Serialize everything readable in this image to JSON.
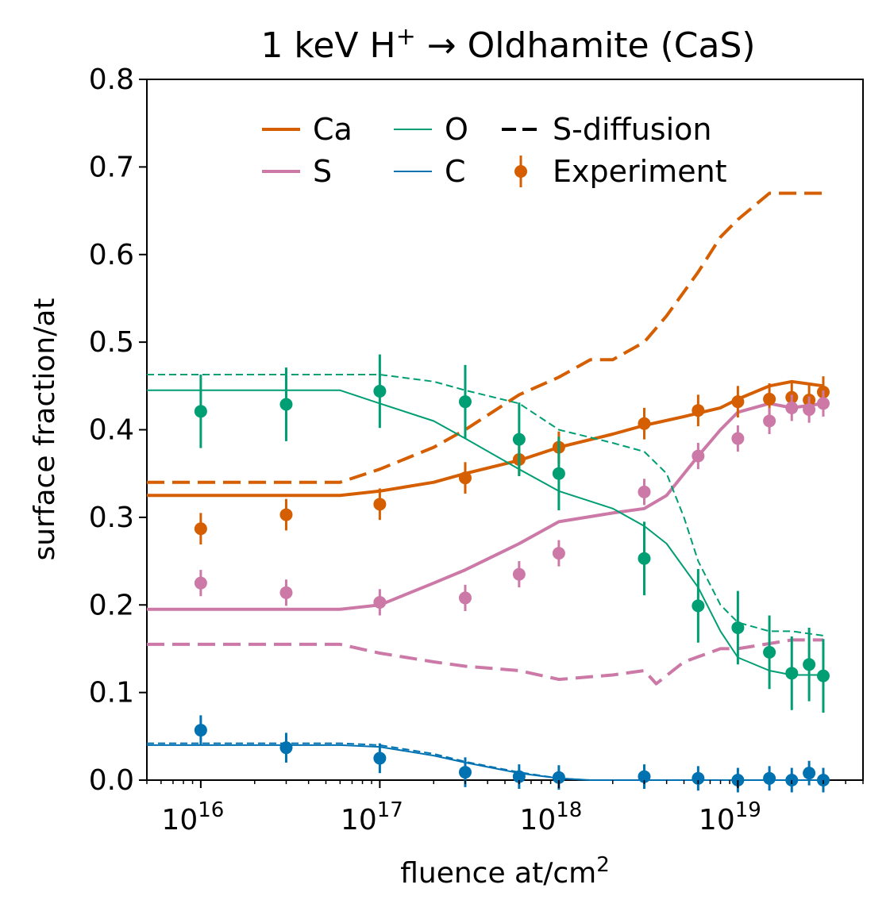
{
  "chart_data": {
    "type": "line",
    "title_main": "1 keV H",
    "title_sup": "+",
    "title_rest": "→ Oldhamite (CaS)",
    "xlabel_main": "fluence at/cm",
    "xlabel_sup": "2",
    "ylabel": "surface fraction/at",
    "xscale": "log",
    "xlim": [
      5000000000000000.0,
      5e+19
    ],
    "ylim": [
      0.0,
      0.8
    ],
    "x_tick_values": [
      1e+16,
      1e+17,
      1e+18,
      1e+19
    ],
    "x_tick_base": [
      "10",
      "10",
      "10",
      "10"
    ],
    "x_tick_exp": [
      "16",
      "17",
      "18",
      "19"
    ],
    "y_ticks": [
      "0.0",
      "0.1",
      "0.2",
      "0.3",
      "0.4",
      "0.5",
      "0.6",
      "0.7",
      "0.8"
    ],
    "colors": {
      "Ca": "#d55e00",
      "S": "#cc79a7",
      "O": "#009e73",
      "C": "#0072b2"
    },
    "legend": [
      {
        "label": "Ca",
        "kind": "thick",
        "color": "Ca"
      },
      {
        "label": "S",
        "kind": "thick",
        "color": "S"
      },
      {
        "label": "O",
        "kind": "thin",
        "color": "O"
      },
      {
        "label": "C",
        "kind": "thin",
        "color": "C"
      },
      {
        "label": "S-diffusion",
        "kind": "dash",
        "color": "#000000"
      },
      {
        "label": "Experiment",
        "kind": "marker",
        "color": "Ca"
      }
    ],
    "series": [
      {
        "element": "Ca",
        "model": "standard",
        "style": "thick",
        "x": [
          5000000000000000.0,
          6e+16,
          1e+17,
          2e+17,
          3e+17,
          6e+17,
          1e+18,
          2e+18,
          3e+18,
          5e+18,
          8e+18,
          1e+19,
          1.5e+19,
          2e+19,
          3e+19
        ],
        "y": [
          0.325,
          0.325,
          0.33,
          0.34,
          0.35,
          0.365,
          0.38,
          0.395,
          0.405,
          0.415,
          0.425,
          0.435,
          0.45,
          0.455,
          0.45
        ]
      },
      {
        "element": "Ca",
        "model": "S-diffusion",
        "style": "dash-thick",
        "x": [
          5000000000000000.0,
          6e+16,
          1e+17,
          2e+17,
          3e+17,
          6e+17,
          1e+18,
          1.5e+18,
          2e+18,
          3e+18,
          4e+18,
          6e+18,
          8e+18,
          1e+19,
          1.5e+19,
          2e+19,
          3e+19
        ],
        "y": [
          0.34,
          0.34,
          0.355,
          0.38,
          0.4,
          0.44,
          0.46,
          0.48,
          0.48,
          0.5,
          0.53,
          0.58,
          0.62,
          0.64,
          0.67,
          0.67,
          0.67
        ]
      },
      {
        "element": "S",
        "model": "standard",
        "style": "thick",
        "x": [
          5000000000000000.0,
          6e+16,
          1e+17,
          2e+17,
          3e+17,
          6e+17,
          1e+18,
          2e+18,
          3e+18,
          4e+18,
          6e+18,
          8e+18,
          1e+19,
          1.5e+19,
          2e+19,
          3e+19
        ],
        "y": [
          0.195,
          0.195,
          0.2,
          0.225,
          0.24,
          0.27,
          0.295,
          0.305,
          0.31,
          0.325,
          0.37,
          0.4,
          0.42,
          0.43,
          0.425,
          0.43
        ]
      },
      {
        "element": "S",
        "model": "S-diffusion",
        "style": "dash-thick",
        "x": [
          5000000000000000.0,
          6e+16,
          1e+17,
          2e+17,
          3e+17,
          6e+17,
          1e+18,
          2e+18,
          3e+18,
          3.5e+18,
          5e+18,
          8e+18,
          1e+19,
          2e+19,
          3e+19
        ],
        "y": [
          0.155,
          0.155,
          0.145,
          0.135,
          0.13,
          0.125,
          0.115,
          0.12,
          0.125,
          0.11,
          0.135,
          0.15,
          0.15,
          0.16,
          0.16
        ]
      },
      {
        "element": "O",
        "model": "standard",
        "style": "thin",
        "x": [
          5000000000000000.0,
          6e+16,
          1e+17,
          2e+17,
          3e+17,
          6e+17,
          1e+18,
          2e+18,
          3e+18,
          4e+18,
          6e+18,
          8e+18,
          1e+19,
          1.5e+19,
          2e+19,
          3e+19
        ],
        "y": [
          0.445,
          0.445,
          0.43,
          0.41,
          0.39,
          0.355,
          0.33,
          0.31,
          0.29,
          0.27,
          0.22,
          0.17,
          0.14,
          0.125,
          0.12,
          0.12
        ]
      },
      {
        "element": "O",
        "model": "S-diffusion",
        "style": "dash-thin",
        "x": [
          5000000000000000.0,
          1e+17,
          2e+17,
          3e+17,
          6e+17,
          1e+18,
          2e+18,
          3e+18,
          4e+18,
          5e+18,
          6e+18,
          8e+18,
          1e+19,
          1.5e+19,
          2e+19,
          3e+19
        ],
        "y": [
          0.463,
          0.463,
          0.455,
          0.445,
          0.43,
          0.4,
          0.385,
          0.375,
          0.35,
          0.3,
          0.25,
          0.2,
          0.18,
          0.17,
          0.17,
          0.165
        ]
      },
      {
        "element": "C",
        "model": "standard",
        "style": "thin",
        "x": [
          5000000000000000.0,
          6e+16,
          1e+17,
          2e+17,
          3e+17,
          6e+17,
          1e+18,
          1.5e+18,
          3e+19
        ],
        "y": [
          0.04,
          0.04,
          0.038,
          0.028,
          0.02,
          0.008,
          0.002,
          0.0,
          0.0
        ]
      },
      {
        "element": "C",
        "model": "S-diffusion",
        "style": "dash-thin",
        "x": [
          5000000000000000.0,
          6e+16,
          1e+17,
          2e+17,
          3e+17,
          6e+17,
          1e+18,
          1.5e+18,
          3e+19
        ],
        "y": [
          0.042,
          0.042,
          0.04,
          0.03,
          0.021,
          0.009,
          0.002,
          0.0,
          0.0
        ]
      }
    ],
    "experiment": [
      {
        "element": "Ca",
        "x": [
          1e+16,
          3e+16,
          1e+17,
          3e+17,
          6e+17,
          1e+18,
          3e+18,
          6e+18,
          1e+19,
          1.5e+19,
          2e+19,
          2.5e+19,
          3e+19
        ],
        "y": [
          0.287,
          0.303,
          0.315,
          0.345,
          0.366,
          0.38,
          0.407,
          0.422,
          0.432,
          0.435,
          0.437,
          0.434,
          0.443
        ],
        "err": [
          0.018,
          0.018,
          0.018,
          0.018,
          0.018,
          0.018,
          0.018,
          0.018,
          0.018,
          0.018,
          0.018,
          0.018,
          0.018
        ]
      },
      {
        "element": "S",
        "x": [
          1e+16,
          3e+16,
          1e+17,
          3e+17,
          6e+17,
          1e+18,
          3e+18,
          6e+18,
          1e+19,
          1.5e+19,
          2e+19,
          2.5e+19,
          3e+19
        ],
        "y": [
          0.225,
          0.214,
          0.203,
          0.208,
          0.235,
          0.259,
          0.329,
          0.37,
          0.39,
          0.41,
          0.425,
          0.423,
          0.43
        ],
        "err": [
          0.015,
          0.015,
          0.015,
          0.015,
          0.015,
          0.015,
          0.015,
          0.015,
          0.015,
          0.015,
          0.015,
          0.015,
          0.015
        ]
      },
      {
        "element": "O",
        "x": [
          1e+16,
          3e+16,
          1e+17,
          3e+17,
          6e+17,
          1e+18,
          3e+18,
          6e+18,
          1e+19,
          1.5e+19,
          2e+19,
          2.5e+19,
          3e+19
        ],
        "y": [
          0.421,
          0.429,
          0.444,
          0.432,
          0.389,
          0.35,
          0.253,
          0.199,
          0.174,
          0.146,
          0.122,
          0.132,
          0.119
        ],
        "err": [
          0.042,
          0.042,
          0.042,
          0.042,
          0.042,
          0.042,
          0.042,
          0.042,
          0.042,
          0.042,
          0.042,
          0.042,
          0.042
        ]
      },
      {
        "element": "C",
        "x": [
          1e+16,
          3e+16,
          1e+17,
          3e+17,
          6e+17,
          1e+18,
          3e+18,
          6e+18,
          1e+19,
          1.5e+19,
          2e+19,
          2.5e+19,
          3e+19
        ],
        "y": [
          0.057,
          0.037,
          0.025,
          0.009,
          0.004,
          0.003,
          0.004,
          0.002,
          0.0,
          0.002,
          0.0,
          0.008,
          0.0
        ],
        "err": [
          0.017,
          0.017,
          0.017,
          0.017,
          0.014,
          0.014,
          0.014,
          0.014,
          0.014,
          0.014,
          0.014,
          0.014,
          0.014
        ]
      }
    ]
  }
}
